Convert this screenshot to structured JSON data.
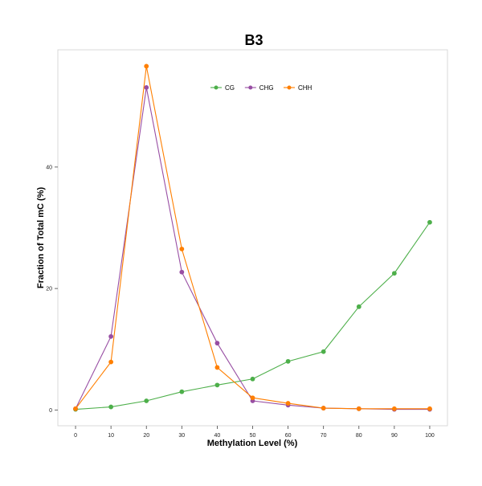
{
  "chart_data": {
    "type": "line",
    "title": "B3",
    "xlabel": "Methylation Level (%)",
    "ylabel": "Fraction of Total mC (%)",
    "x": [
      0,
      10,
      20,
      30,
      40,
      50,
      60,
      70,
      80,
      90,
      100
    ],
    "x_ticks": [
      "0",
      "10",
      "20",
      "30",
      "40",
      "50",
      "60",
      "70",
      "80",
      "90",
      "100"
    ],
    "y_ticks": [
      {
        "value": 0,
        "label": "0"
      },
      {
        "value": 20,
        "label": "20"
      },
      {
        "value": 40,
        "label": "40"
      }
    ],
    "xlim": [
      -5,
      105
    ],
    "ylim": [
      -2.6,
      59.3
    ],
    "grid": false,
    "legend_position": "top-center",
    "series": [
      {
        "name": "CG",
        "color": "#4daf4a",
        "values": [
          0.1,
          0.5,
          1.5,
          3.0,
          4.1,
          5.1,
          8.0,
          9.6,
          17.0,
          22.5,
          30.9
        ]
      },
      {
        "name": "CHG",
        "color": "#984ea3",
        "values": [
          0.2,
          12.1,
          53.1,
          22.7,
          11.0,
          1.5,
          0.8,
          0.3,
          0.2,
          0.1,
          0.1
        ]
      },
      {
        "name": "CHH",
        "color": "#ff7f00",
        "values": [
          0.2,
          7.9,
          56.6,
          26.5,
          7.0,
          2.0,
          1.1,
          0.3,
          0.2,
          0.2,
          0.2
        ]
      }
    ]
  }
}
